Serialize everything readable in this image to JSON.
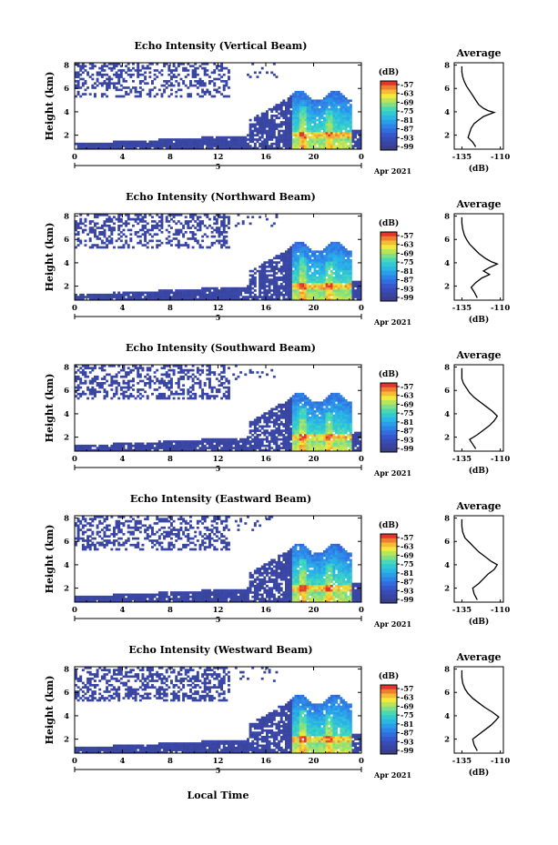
{
  "figure": {
    "xlabel": "Local Time",
    "date_label": "Apr 2021",
    "day_label": "5",
    "avg_title": "Average",
    "avg_xlabel": "(dB)",
    "cb_unit": "(dB)"
  },
  "chart_data": [
    {
      "type": "heatmap",
      "title": "Echo Intensity (Vertical Beam)",
      "ylabel": "Height (km)",
      "xlabel": "Local Time",
      "x_ticks": [
        "0",
        "4",
        "8",
        "12",
        "16",
        "20",
        "0"
      ],
      "y_ticks": [
        "2",
        "4",
        "6",
        "8"
      ],
      "xlim": [
        0,
        24
      ],
      "ylim": [
        0.8,
        8.2
      ],
      "colorbar": {
        "unit": "(dB)",
        "ticks": [
          "-57",
          "-63",
          "-69",
          "-75",
          "-81",
          "-87",
          "-93",
          "-99"
        ]
      },
      "profile": {
        "title": "Average",
        "xlabel": "(dB)",
        "x_ticks": [
          "-135",
          "-110"
        ],
        "y_ticks": [
          "2",
          "4",
          "6",
          "8"
        ],
        "points": [
          [
            -126,
            1.0
          ],
          [
            -128,
            1.4
          ],
          [
            -131,
            1.8
          ],
          [
            -130,
            2.2
          ],
          [
            -129,
            2.6
          ],
          [
            -127,
            3.0
          ],
          [
            -124,
            3.3
          ],
          [
            -121,
            3.6
          ],
          [
            -117,
            3.8
          ],
          [
            -114,
            3.95
          ],
          [
            -118,
            4.1
          ],
          [
            -121,
            4.3
          ],
          [
            -124,
            4.6
          ],
          [
            -126,
            5.0
          ],
          [
            -128,
            5.4
          ],
          [
            -130,
            5.8
          ],
          [
            -132,
            6.2
          ],
          [
            -133.5,
            6.6
          ],
          [
            -134.5,
            7.0
          ],
          [
            -135,
            7.4
          ],
          [
            -135,
            7.9
          ]
        ]
      }
    },
    {
      "type": "heatmap",
      "title": "Echo Intensity (Northward Beam)",
      "ylabel": "Height (km)",
      "xlabel": "Local Time",
      "x_ticks": [
        "0",
        "4",
        "8",
        "12",
        "16",
        "20",
        "0"
      ],
      "y_ticks": [
        "2",
        "4",
        "6",
        "8"
      ],
      "xlim": [
        0,
        24
      ],
      "ylim": [
        0.8,
        8.2
      ],
      "colorbar": {
        "unit": "(dB)",
        "ticks": [
          "-57",
          "-63",
          "-69",
          "-75",
          "-81",
          "-87",
          "-93",
          "-99"
        ]
      },
      "profile": {
        "title": "Average",
        "xlabel": "(dB)",
        "x_ticks": [
          "-135",
          "-110"
        ],
        "y_ticks": [
          "2",
          "4",
          "6",
          "8"
        ],
        "points": [
          [
            -125,
            1.0
          ],
          [
            -127,
            1.5
          ],
          [
            -129,
            1.9
          ],
          [
            -126,
            2.3
          ],
          [
            -122,
            2.7
          ],
          [
            -117,
            3.0
          ],
          [
            -121,
            3.3
          ],
          [
            -117,
            3.6
          ],
          [
            -112,
            3.9
          ],
          [
            -116,
            4.1
          ],
          [
            -120,
            4.4
          ],
          [
            -124,
            4.8
          ],
          [
            -127,
            5.2
          ],
          [
            -130,
            5.6
          ],
          [
            -132,
            6.0
          ],
          [
            -133.5,
            6.4
          ],
          [
            -134.5,
            6.9
          ],
          [
            -135,
            7.4
          ],
          [
            -135,
            7.9
          ]
        ]
      }
    },
    {
      "type": "heatmap",
      "title": "Echo Intensity (Southward Beam)",
      "ylabel": "Height (km)",
      "xlabel": "Local Time",
      "x_ticks": [
        "0",
        "4",
        "8",
        "12",
        "16",
        "20",
        "0"
      ],
      "y_ticks": [
        "2",
        "4",
        "6",
        "8"
      ],
      "xlim": [
        0,
        24
      ],
      "ylim": [
        0.8,
        8.2
      ],
      "colorbar": {
        "unit": "(dB)",
        "ticks": [
          "-57",
          "-63",
          "-69",
          "-75",
          "-81",
          "-87",
          "-93",
          "-99"
        ]
      },
      "profile": {
        "title": "Average",
        "xlabel": "(dB)",
        "x_ticks": [
          "-135",
          "-110"
        ],
        "y_ticks": [
          "2",
          "4",
          "6",
          "8"
        ],
        "points": [
          [
            -126,
            1.0
          ],
          [
            -128,
            1.4
          ],
          [
            -130,
            1.8
          ],
          [
            -125,
            2.2
          ],
          [
            -121,
            2.6
          ],
          [
            -117,
            3.0
          ],
          [
            -114,
            3.4
          ],
          [
            -112,
            3.8
          ],
          [
            -115,
            4.2
          ],
          [
            -119,
            4.6
          ],
          [
            -123,
            5.0
          ],
          [
            -127,
            5.4
          ],
          [
            -130,
            5.8
          ],
          [
            -132,
            6.2
          ],
          [
            -134,
            6.6
          ],
          [
            -135,
            7.0
          ],
          [
            -135,
            7.9
          ]
        ]
      }
    },
    {
      "type": "heatmap",
      "title": "Echo Intensity (Eastward Beam)",
      "ylabel": "Height (km)",
      "xlabel": "Local Time",
      "x_ticks": [
        "0",
        "4",
        "8",
        "12",
        "16",
        "20",
        "0"
      ],
      "y_ticks": [
        "2",
        "4",
        "6",
        "8"
      ],
      "xlim": [
        0,
        24
      ],
      "ylim": [
        0.8,
        8.2
      ],
      "colorbar": {
        "unit": "(dB)",
        "ticks": [
          "-57",
          "-63",
          "-69",
          "-75",
          "-81",
          "-87",
          "-93",
          "-99"
        ]
      },
      "profile": {
        "title": "Average",
        "xlabel": "(dB)",
        "x_ticks": [
          "-135",
          "-110"
        ],
        "y_ticks": [
          "2",
          "4",
          "6",
          "8"
        ],
        "points": [
          [
            -125,
            1.0
          ],
          [
            -127,
            1.5
          ],
          [
            -128,
            2.0
          ],
          [
            -124,
            2.4
          ],
          [
            -121,
            2.8
          ],
          [
            -118,
            3.2
          ],
          [
            -114,
            3.6
          ],
          [
            -112,
            4.0
          ],
          [
            -116,
            4.3
          ],
          [
            -120,
            4.7
          ],
          [
            -124,
            5.1
          ],
          [
            -127,
            5.5
          ],
          [
            -130,
            5.9
          ],
          [
            -133,
            6.3
          ],
          [
            -134.5,
            6.8
          ],
          [
            -135,
            7.3
          ],
          [
            -135,
            7.9
          ]
        ]
      }
    },
    {
      "type": "heatmap",
      "title": "Echo Intensity (Westward Beam)",
      "ylabel": "Height (km)",
      "xlabel": "Local Time",
      "x_ticks": [
        "0",
        "4",
        "8",
        "12",
        "16",
        "20",
        "0"
      ],
      "y_ticks": [
        "2",
        "4",
        "6",
        "8"
      ],
      "xlim": [
        0,
        24
      ],
      "ylim": [
        0.8,
        8.2
      ],
      "colorbar": {
        "unit": "(dB)",
        "ticks": [
          "-57",
          "-63",
          "-69",
          "-75",
          "-81",
          "-87",
          "-93",
          "-99"
        ]
      },
      "profile": {
        "title": "Average",
        "xlabel": "(dB)",
        "x_ticks": [
          "-135",
          "-110"
        ],
        "y_ticks": [
          "2",
          "4",
          "6",
          "8"
        ],
        "points": [
          [
            -125,
            1.0
          ],
          [
            -127,
            1.5
          ],
          [
            -128,
            2.0
          ],
          [
            -124,
            2.4
          ],
          [
            -120,
            2.8
          ],
          [
            -116,
            3.2
          ],
          [
            -113,
            3.6
          ],
          [
            -111,
            3.9
          ],
          [
            -115,
            4.3
          ],
          [
            -120,
            4.7
          ],
          [
            -124,
            5.1
          ],
          [
            -128,
            5.5
          ],
          [
            -131,
            5.9
          ],
          [
            -133,
            6.3
          ],
          [
            -134.5,
            6.8
          ],
          [
            -135,
            7.3
          ],
          [
            -135,
            7.9
          ]
        ]
      }
    }
  ]
}
